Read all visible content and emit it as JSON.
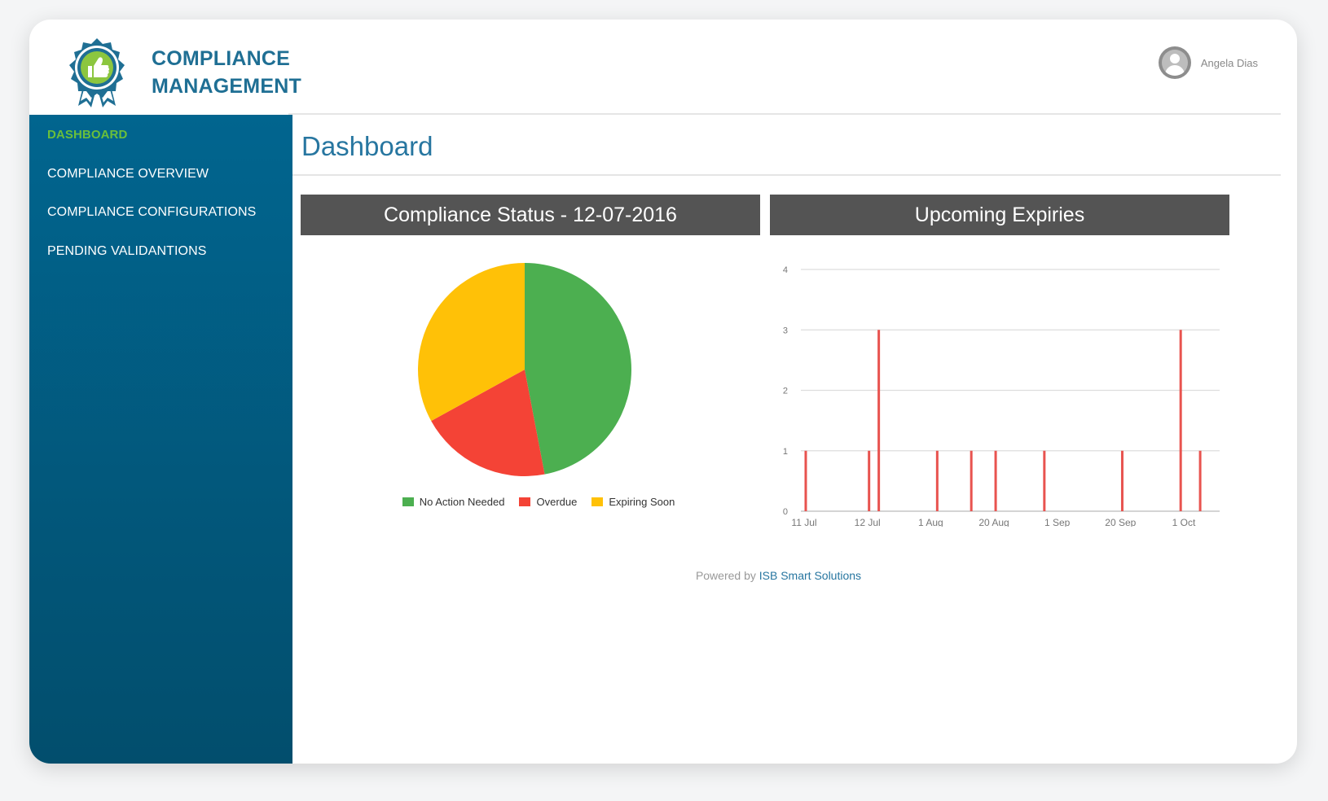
{
  "app": {
    "title_line1": "COMPLIANCE",
    "title_line2": "MANAGEMENT",
    "logo_icon": "thumbs-up-badge-icon",
    "colors": {
      "brand_blue": "#1f6f94",
      "brand_green": "#6abf3b",
      "sidebar_top": "#01658f",
      "sidebar_bottom": "#024e6d"
    }
  },
  "user": {
    "name": "Angela Dias",
    "avatar_icon": "user-avatar-icon"
  },
  "sidebar": {
    "items": [
      {
        "label": "DASHBOARD",
        "active": true
      },
      {
        "label": "COMPLIANCE OVERVIEW",
        "active": false
      },
      {
        "label": "COMPLIANCE CONFIGURATIONS",
        "active": false
      },
      {
        "label": "PENDING VALIDANTIONS",
        "active": false
      }
    ]
  },
  "page": {
    "title": "Dashboard"
  },
  "panels": {
    "status_title": "Compliance Status - 12-07-2016",
    "expiries_title": "Upcoming Expiries"
  },
  "chart_data": [
    {
      "type": "pie",
      "title": "Compliance Status - 12-07-2016",
      "series": [
        {
          "name": "No Action Needed",
          "value": 47,
          "color": "#4caf50"
        },
        {
          "name": "Overdue",
          "value": 20,
          "color": "#f44336"
        },
        {
          "name": "Expiring Soon",
          "value": 33,
          "color": "#ffc107"
        }
      ],
      "legend": "bottom"
    },
    {
      "type": "bar",
      "title": "Upcoming Expiries",
      "x_ticks": [
        "11 Jul",
        "12 Jul",
        "1 Aug",
        "20 Aug",
        "1 Sep",
        "20 Sep",
        "1 Oct"
      ],
      "x": [
        "2016-07-11",
        "2016-07-24",
        "2016-07-26",
        "2016-08-07",
        "2016-08-14",
        "2016-08-19",
        "2016-08-29",
        "2016-09-14",
        "2016-09-26",
        "2016-09-30"
      ],
      "values": [
        1,
        1,
        3,
        1,
        1,
        1,
        1,
        1,
        3,
        1
      ],
      "yticks": [
        0,
        1,
        2,
        3,
        4
      ],
      "ylim": [
        0,
        4
      ],
      "grid": true,
      "color": "#e8534f"
    }
  ],
  "footer": {
    "prefix": "Powered by",
    "brand": "ISB Smart Solutions"
  }
}
